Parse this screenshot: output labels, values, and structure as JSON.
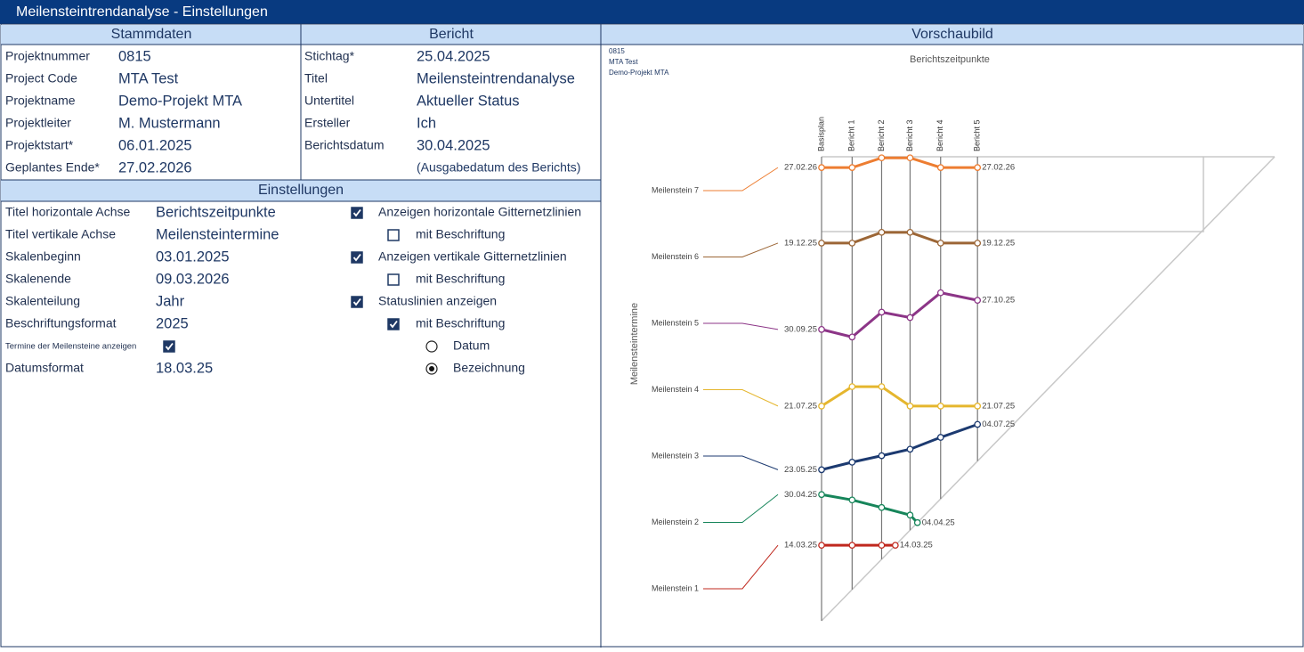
{
  "window": {
    "title": "Meilensteintrendanalyse - Einstellungen"
  },
  "stammdaten": {
    "heading": "Stammdaten",
    "rows": [
      [
        "Projektnummer",
        "0815"
      ],
      [
        "Project Code",
        "MTA Test"
      ],
      [
        "Projektname",
        "Demo-Projekt MTA"
      ],
      [
        "Projektleiter",
        "M. Mustermann"
      ],
      [
        "Projektstart*",
        "06.01.2025"
      ],
      [
        "Geplantes Ende*",
        "27.02.2026"
      ]
    ]
  },
  "bericht": {
    "heading": "Bericht",
    "rows": [
      [
        "Stichtag*",
        "25.04.2025"
      ],
      [
        "Titel",
        "Meilensteintrendanalyse"
      ],
      [
        "Untertitel",
        "Aktueller Status"
      ],
      [
        "Ersteller",
        "Ich"
      ],
      [
        "Berichtsdatum",
        "30.04.2025"
      ]
    ],
    "note": "(Ausgabedatum des Berichts)"
  },
  "einstellungen": {
    "heading": "Einstellungen",
    "rows": [
      [
        "Titel horizontale Achse",
        "Berichtszeitpunkte"
      ],
      [
        "Titel vertikale Achse",
        "Meilensteintermine"
      ],
      [
        "Skalenbeginn",
        "03.01.2025"
      ],
      [
        "Skalenende",
        "09.03.2026"
      ],
      [
        "Skalenteilung",
        "Jahr"
      ],
      [
        "Beschriftungsformat",
        "2025"
      ]
    ],
    "termine": {
      "label": "Termine der Meilensteine anzeigen",
      "checked": true
    },
    "datumsformat": [
      "Datumsformat",
      "18.03.25"
    ],
    "options": [
      {
        "label": "Anzeigen horizontale Gitternetzlinien",
        "checked": true,
        "sub": {
          "label": "mit Beschriftung",
          "checked": false
        }
      },
      {
        "label": "Anzeigen vertikale Gitternetzlinien",
        "checked": true,
        "sub": {
          "label": "mit Beschriftung",
          "checked": false
        }
      },
      {
        "label": "Statuslinien anzeigen",
        "checked": true,
        "sub": {
          "label": "mit Beschriftung",
          "checked": true
        }
      }
    ],
    "radios": [
      {
        "label": "Datum",
        "selected": false
      },
      {
        "label": "Bezeichnung",
        "selected": true
      }
    ]
  },
  "vorschau": {
    "heading": "Vorschaubild",
    "info": [
      "0815",
      "MTA Test",
      "Demo-Projekt MTA"
    ],
    "x_title": "Berichtszeitpunkte",
    "y_title": "Meilensteintermine",
    "reports": [
      {
        "label": "Basisplan",
        "date": "03.01.25"
      },
      {
        "label": "Bericht 1",
        "date": "01.02.25"
      },
      {
        "label": "Bericht 2",
        "date": "01.03.25"
      },
      {
        "label": "Bericht 3",
        "date": "28.03.25"
      },
      {
        "label": "Bericht 4",
        "date": "26.04.25"
      },
      {
        "label": "Bericht 5",
        "date": "31.05.25"
      }
    ],
    "milestones": [
      {
        "name": "Meilenstein 1",
        "color": "#c0281e",
        "dates": [
          "14.03.25",
          "14.03.25",
          "14.03.25",
          null,
          null,
          null
        ],
        "done": "14.03.25"
      },
      {
        "name": "Meilenstein 2",
        "color": "#16855a",
        "dates": [
          "30.04.25",
          "25.04.25",
          "18.04.25",
          "11.04.25",
          null,
          null
        ],
        "done": "04.04.25"
      },
      {
        "name": "Meilenstein 3",
        "color": "#1c3a70",
        "dates": [
          "23.05.25",
          "30.05.25",
          "05.06.25",
          "11.06.25",
          "22.06.25",
          "04.07.25"
        ]
      },
      {
        "name": "Meilenstein 4",
        "color": "#e5b62e",
        "dates": [
          "21.07.25",
          "08.08.25",
          "08.08.25",
          "21.07.25",
          "21.07.25",
          "21.07.25"
        ]
      },
      {
        "name": "Meilenstein 5",
        "color": "#8c3587",
        "dates": [
          "30.09.25",
          "23.09.25",
          "16.10.25",
          "11.10.25",
          "03.11.25",
          "27.10.25"
        ]
      },
      {
        "name": "Meilenstein 6",
        "color": "#9c6636",
        "dates": [
          "19.12.25",
          "19.12.25",
          "29.12.25",
          "29.12.25",
          "19.12.25",
          "19.12.25"
        ]
      },
      {
        "name": "Meilenstein 7",
        "color": "#ed7d31",
        "dates": [
          "27.02.26",
          "27.02.26",
          "08.03.26",
          "08.03.26",
          "27.02.26",
          "27.02.26"
        ]
      }
    ]
  }
}
